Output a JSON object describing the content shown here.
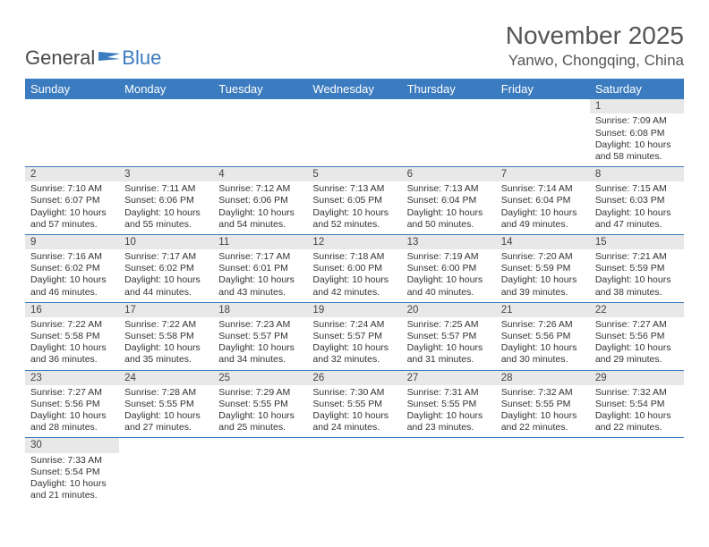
{
  "brand": {
    "name1": "General",
    "name2": "Blue"
  },
  "title": "November 2025",
  "location": "Yanwo, Chongqing, China",
  "colors": {
    "header_bg": "#3b7bbf",
    "header_text": "#ffffff",
    "daynum_bg": "#e8e8e8",
    "text": "#333333",
    "rule": "#3b7bbf"
  },
  "day_names": [
    "Sunday",
    "Monday",
    "Tuesday",
    "Wednesday",
    "Thursday",
    "Friday",
    "Saturday"
  ],
  "weeks": [
    [
      null,
      null,
      null,
      null,
      null,
      null,
      {
        "n": "1",
        "sunrise": "Sunrise: 7:09 AM",
        "sunset": "Sunset: 6:08 PM",
        "daylight": "Daylight: 10 hours and 58 minutes."
      }
    ],
    [
      {
        "n": "2",
        "sunrise": "Sunrise: 7:10 AM",
        "sunset": "Sunset: 6:07 PM",
        "daylight": "Daylight: 10 hours and 57 minutes."
      },
      {
        "n": "3",
        "sunrise": "Sunrise: 7:11 AM",
        "sunset": "Sunset: 6:06 PM",
        "daylight": "Daylight: 10 hours and 55 minutes."
      },
      {
        "n": "4",
        "sunrise": "Sunrise: 7:12 AM",
        "sunset": "Sunset: 6:06 PM",
        "daylight": "Daylight: 10 hours and 54 minutes."
      },
      {
        "n": "5",
        "sunrise": "Sunrise: 7:13 AM",
        "sunset": "Sunset: 6:05 PM",
        "daylight": "Daylight: 10 hours and 52 minutes."
      },
      {
        "n": "6",
        "sunrise": "Sunrise: 7:13 AM",
        "sunset": "Sunset: 6:04 PM",
        "daylight": "Daylight: 10 hours and 50 minutes."
      },
      {
        "n": "7",
        "sunrise": "Sunrise: 7:14 AM",
        "sunset": "Sunset: 6:04 PM",
        "daylight": "Daylight: 10 hours and 49 minutes."
      },
      {
        "n": "8",
        "sunrise": "Sunrise: 7:15 AM",
        "sunset": "Sunset: 6:03 PM",
        "daylight": "Daylight: 10 hours and 47 minutes."
      }
    ],
    [
      {
        "n": "9",
        "sunrise": "Sunrise: 7:16 AM",
        "sunset": "Sunset: 6:02 PM",
        "daylight": "Daylight: 10 hours and 46 minutes."
      },
      {
        "n": "10",
        "sunrise": "Sunrise: 7:17 AM",
        "sunset": "Sunset: 6:02 PM",
        "daylight": "Daylight: 10 hours and 44 minutes."
      },
      {
        "n": "11",
        "sunrise": "Sunrise: 7:17 AM",
        "sunset": "Sunset: 6:01 PM",
        "daylight": "Daylight: 10 hours and 43 minutes."
      },
      {
        "n": "12",
        "sunrise": "Sunrise: 7:18 AM",
        "sunset": "Sunset: 6:00 PM",
        "daylight": "Daylight: 10 hours and 42 minutes."
      },
      {
        "n": "13",
        "sunrise": "Sunrise: 7:19 AM",
        "sunset": "Sunset: 6:00 PM",
        "daylight": "Daylight: 10 hours and 40 minutes."
      },
      {
        "n": "14",
        "sunrise": "Sunrise: 7:20 AM",
        "sunset": "Sunset: 5:59 PM",
        "daylight": "Daylight: 10 hours and 39 minutes."
      },
      {
        "n": "15",
        "sunrise": "Sunrise: 7:21 AM",
        "sunset": "Sunset: 5:59 PM",
        "daylight": "Daylight: 10 hours and 38 minutes."
      }
    ],
    [
      {
        "n": "16",
        "sunrise": "Sunrise: 7:22 AM",
        "sunset": "Sunset: 5:58 PM",
        "daylight": "Daylight: 10 hours and 36 minutes."
      },
      {
        "n": "17",
        "sunrise": "Sunrise: 7:22 AM",
        "sunset": "Sunset: 5:58 PM",
        "daylight": "Daylight: 10 hours and 35 minutes."
      },
      {
        "n": "18",
        "sunrise": "Sunrise: 7:23 AM",
        "sunset": "Sunset: 5:57 PM",
        "daylight": "Daylight: 10 hours and 34 minutes."
      },
      {
        "n": "19",
        "sunrise": "Sunrise: 7:24 AM",
        "sunset": "Sunset: 5:57 PM",
        "daylight": "Daylight: 10 hours and 32 minutes."
      },
      {
        "n": "20",
        "sunrise": "Sunrise: 7:25 AM",
        "sunset": "Sunset: 5:57 PM",
        "daylight": "Daylight: 10 hours and 31 minutes."
      },
      {
        "n": "21",
        "sunrise": "Sunrise: 7:26 AM",
        "sunset": "Sunset: 5:56 PM",
        "daylight": "Daylight: 10 hours and 30 minutes."
      },
      {
        "n": "22",
        "sunrise": "Sunrise: 7:27 AM",
        "sunset": "Sunset: 5:56 PM",
        "daylight": "Daylight: 10 hours and 29 minutes."
      }
    ],
    [
      {
        "n": "23",
        "sunrise": "Sunrise: 7:27 AM",
        "sunset": "Sunset: 5:56 PM",
        "daylight": "Daylight: 10 hours and 28 minutes."
      },
      {
        "n": "24",
        "sunrise": "Sunrise: 7:28 AM",
        "sunset": "Sunset: 5:55 PM",
        "daylight": "Daylight: 10 hours and 27 minutes."
      },
      {
        "n": "25",
        "sunrise": "Sunrise: 7:29 AM",
        "sunset": "Sunset: 5:55 PM",
        "daylight": "Daylight: 10 hours and 25 minutes."
      },
      {
        "n": "26",
        "sunrise": "Sunrise: 7:30 AM",
        "sunset": "Sunset: 5:55 PM",
        "daylight": "Daylight: 10 hours and 24 minutes."
      },
      {
        "n": "27",
        "sunrise": "Sunrise: 7:31 AM",
        "sunset": "Sunset: 5:55 PM",
        "daylight": "Daylight: 10 hours and 23 minutes."
      },
      {
        "n": "28",
        "sunrise": "Sunrise: 7:32 AM",
        "sunset": "Sunset: 5:55 PM",
        "daylight": "Daylight: 10 hours and 22 minutes."
      },
      {
        "n": "29",
        "sunrise": "Sunrise: 7:32 AM",
        "sunset": "Sunset: 5:54 PM",
        "daylight": "Daylight: 10 hours and 22 minutes."
      }
    ],
    [
      {
        "n": "30",
        "sunrise": "Sunrise: 7:33 AM",
        "sunset": "Sunset: 5:54 PM",
        "daylight": "Daylight: 10 hours and 21 minutes."
      },
      null,
      null,
      null,
      null,
      null,
      null
    ]
  ]
}
